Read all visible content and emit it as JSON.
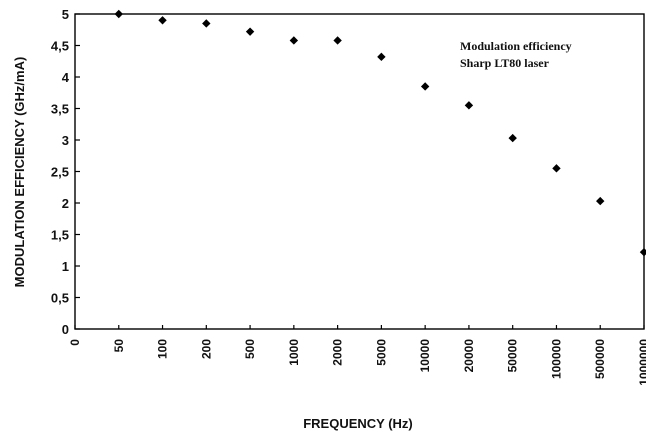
{
  "chart_data": {
    "type": "scatter",
    "title": "",
    "xlabel": "FREQUENCY (Hz)",
    "ylabel": "MODULATION EFFICIENCY  (GHz/mA)",
    "x_scale": "categorical",
    "categories": [
      "0",
      "50",
      "100",
      "200",
      "500",
      "1000",
      "2000",
      "5000",
      "10000",
      "20000",
      "50000",
      "100000",
      "500000",
      "1000000"
    ],
    "y_ticks": [
      "0",
      "0,5",
      "1",
      "1,5",
      "2",
      "2,5",
      "3",
      "3,5",
      "4",
      "4,5",
      "5"
    ],
    "ylim": [
      0,
      5
    ],
    "grid": false,
    "legend": "none",
    "annotation": [
      "Modulation efficiency",
      "Sharp LT80 laser"
    ],
    "marker_color": "#000000",
    "series": [
      {
        "x": [
          "50",
          "100",
          "200",
          "500",
          "1000",
          "2000",
          "5000",
          "10000",
          "20000",
          "50000",
          "100000",
          "500000",
          "1000000"
        ],
        "y": [
          5.0,
          4.9,
          4.85,
          4.72,
          4.58,
          4.58,
          4.32,
          3.85,
          3.55,
          3.03,
          2.55,
          2.03,
          1.22
        ]
      }
    ]
  }
}
